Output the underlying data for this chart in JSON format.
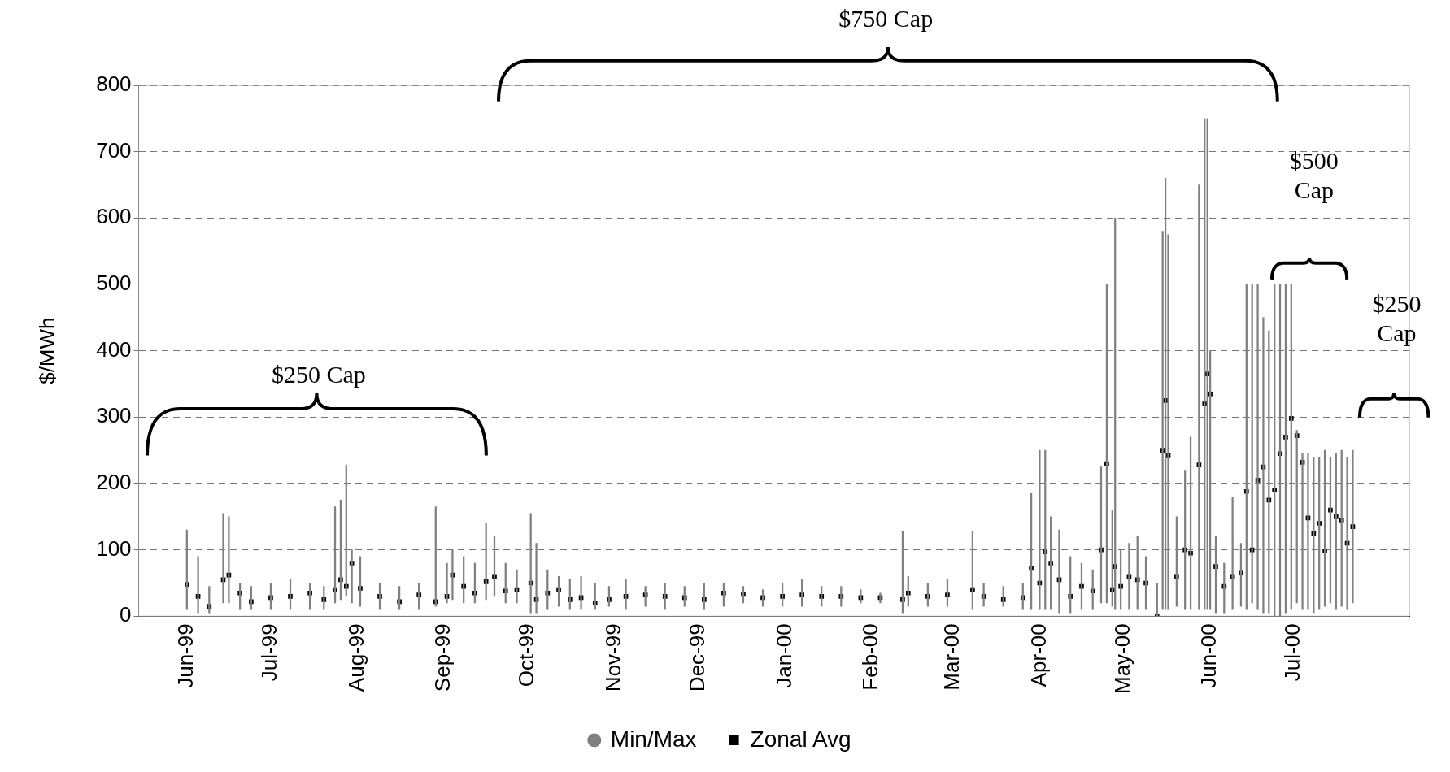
{
  "chart_data": {
    "type": "bar",
    "ylabel": "$/MWh",
    "x": [
      "1999-06-01",
      "1999-06-05",
      "1999-06-09",
      "1999-06-14",
      "1999-06-16",
      "1999-06-20",
      "1999-06-24",
      "1999-07-01",
      "1999-07-08",
      "1999-07-15",
      "1999-07-20",
      "1999-07-24",
      "1999-07-26",
      "1999-07-28",
      "1999-07-30",
      "1999-08-02",
      "1999-08-09",
      "1999-08-16",
      "1999-08-23",
      "1999-08-29",
      "1999-09-02",
      "1999-09-04",
      "1999-09-08",
      "1999-09-12",
      "1999-09-16",
      "1999-09-19",
      "1999-09-23",
      "1999-09-27",
      "1999-10-02",
      "1999-10-04",
      "1999-10-08",
      "1999-10-12",
      "1999-10-16",
      "1999-10-20",
      "1999-10-25",
      "1999-10-30",
      "1999-11-05",
      "1999-11-12",
      "1999-11-19",
      "1999-11-26",
      "1999-12-03",
      "1999-12-10",
      "1999-12-17",
      "1999-12-24",
      "1999-12-31",
      "2000-01-07",
      "2000-01-14",
      "2000-01-21",
      "2000-01-28",
      "2000-02-04",
      "2000-02-12",
      "2000-02-14",
      "2000-02-21",
      "2000-02-28",
      "2000-03-08",
      "2000-03-12",
      "2000-03-19",
      "2000-03-26",
      "2000-03-29",
      "2000-04-01",
      "2000-04-03",
      "2000-04-05",
      "2000-04-08",
      "2000-04-12",
      "2000-04-16",
      "2000-04-20",
      "2000-04-23",
      "2000-04-25",
      "2000-04-27",
      "2000-04-28",
      "2000-04-30",
      "2000-05-03",
      "2000-05-06",
      "2000-05-09",
      "2000-05-13",
      "2000-05-15",
      "2000-05-16",
      "2000-05-17",
      "2000-05-20",
      "2000-05-23",
      "2000-05-25",
      "2000-05-28",
      "2000-05-30",
      "2000-05-31",
      "2000-06-01",
      "2000-06-03",
      "2000-06-06",
      "2000-06-09",
      "2000-06-12",
      "2000-06-14",
      "2000-06-16",
      "2000-06-18",
      "2000-06-20",
      "2000-06-22",
      "2000-06-24",
      "2000-06-26",
      "2000-06-28",
      "2000-06-30",
      "2000-07-02",
      "2000-07-04",
      "2000-07-06",
      "2000-07-08",
      "2000-07-10",
      "2000-07-12",
      "2000-07-14",
      "2000-07-16",
      "2000-07-18",
      "2000-07-20",
      "2000-07-22"
    ],
    "series": [
      {
        "name": "Min/Max",
        "color": "#808080",
        "base": [
          10,
          5,
          5,
          20,
          20,
          10,
          10,
          10,
          10,
          10,
          10,
          20,
          25,
          30,
          20,
          15,
          10,
          10,
          10,
          15,
          20,
          25,
          20,
          20,
          25,
          30,
          20,
          20,
          5,
          5,
          10,
          15,
          10,
          10,
          10,
          15,
          10,
          15,
          10,
          15,
          10,
          15,
          20,
          15,
          15,
          15,
          15,
          15,
          20,
          20,
          5,
          15,
          15,
          15,
          10,
          15,
          15,
          10,
          10,
          10,
          10,
          10,
          5,
          5,
          10,
          10,
          20,
          20,
          15,
          10,
          10,
          10,
          10,
          10,
          0,
          10,
          10,
          10,
          15,
          10,
          10,
          10,
          10,
          10,
          10,
          5,
          5,
          10,
          15,
          10,
          20,
          10,
          5,
          5,
          0,
          0,
          5,
          10,
          20,
          10,
          10,
          5,
          10,
          15,
          20,
          10,
          15,
          10,
          20
        ],
        "values": [
          120,
          85,
          40,
          135,
          130,
          40,
          35,
          40,
          45,
          40,
          35,
          145,
          150,
          198,
          80,
          75,
          40,
          35,
          40,
          150,
          60,
          75,
          70,
          60,
          115,
          90,
          60,
          50,
          150,
          105,
          60,
          45,
          45,
          50,
          40,
          30,
          45,
          30,
          40,
          30,
          40,
          35,
          25,
          25,
          35,
          40,
          30,
          30,
          20,
          15,
          123,
          45,
          35,
          40,
          118,
          35,
          30,
          40,
          175,
          240,
          240,
          140,
          125,
          85,
          70,
          60,
          205,
          480,
          145,
          590,
          90,
          100,
          110,
          80,
          50,
          570,
          650,
          565,
          135,
          210,
          260,
          640,
          740,
          740,
          390,
          115,
          75,
          170,
          95,
          490,
          480,
          490,
          445,
          425,
          500,
          500,
          495,
          490,
          260,
          235,
          235,
          235,
          230,
          235,
          220,
          235,
          235,
          230,
          230
        ]
      },
      {
        "name": "Zonal Avg",
        "type": "scatter",
        "color": "#000000",
        "marker": "square",
        "values": [
          48,
          30,
          15,
          55,
          62,
          35,
          22,
          28,
          30,
          35,
          25,
          40,
          55,
          45,
          80,
          42,
          30,
          22,
          32,
          22,
          30,
          62,
          45,
          35,
          52,
          60,
          38,
          40,
          50,
          25,
          35,
          40,
          25,
          28,
          20,
          25,
          30,
          32,
          30,
          28,
          25,
          35,
          33,
          28,
          30,
          32,
          30,
          30,
          28,
          28,
          25,
          35,
          30,
          32,
          40,
          30,
          25,
          28,
          72,
          50,
          97,
          80,
          55,
          30,
          45,
          38,
          100,
          230,
          40,
          75,
          45,
          60,
          55,
          50,
          0,
          250,
          325,
          243,
          60,
          100,
          95,
          228,
          320,
          365,
          335,
          75,
          45,
          60,
          65,
          188,
          100,
          205,
          225,
          175,
          190,
          245,
          270,
          298,
          272,
          232,
          148,
          125,
          140,
          98,
          160,
          150,
          145,
          110,
          135
        ]
      }
    ],
    "xlim": [
      "1999-05-31",
      "2000-07-26"
    ],
    "xticks": [
      {
        "value": "1999-06-01",
        "label": "Jun-99"
      },
      {
        "value": "1999-07-01",
        "label": "Jul-99"
      },
      {
        "value": "1999-08-01",
        "label": "Aug-99"
      },
      {
        "value": "1999-09-01",
        "label": "Sep-99"
      },
      {
        "value": "1999-10-01",
        "label": "Oct-99"
      },
      {
        "value": "1999-11-01",
        "label": "Nov-99"
      },
      {
        "value": "1999-12-01",
        "label": "Dec-99"
      },
      {
        "value": "2000-01-01",
        "label": "Jan-00"
      },
      {
        "value": "2000-02-01",
        "label": "Feb-00"
      },
      {
        "value": "2000-03-01",
        "label": "Mar-00"
      },
      {
        "value": "2000-04-01",
        "label": "Apr-00"
      },
      {
        "value": "2000-05-01",
        "label": "May-00"
      },
      {
        "value": "2000-06-01",
        "label": "Jun-00"
      },
      {
        "value": "2000-07-01",
        "label": "Jul-00"
      }
    ],
    "ylim": [
      0,
      800
    ],
    "yticks": [
      0,
      100,
      200,
      300,
      400,
      500,
      600,
      700,
      800
    ],
    "grid": "y",
    "legend": "bottom",
    "annotations": [
      "$250 Cap",
      "$750 Cap",
      "$500 Cap",
      "$250 Cap"
    ]
  }
}
